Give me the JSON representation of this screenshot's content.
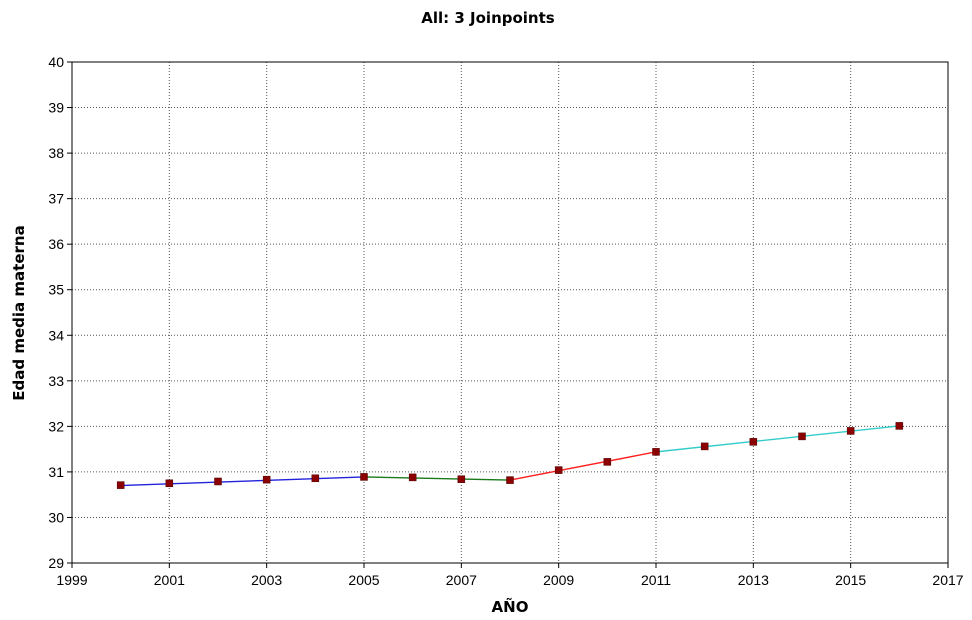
{
  "chart_data": {
    "type": "line",
    "title": "All: 3 Joinpoints",
    "xlabel": "AÑO",
    "ylabel": "Edad media materna",
    "xlim": [
      1999,
      2017
    ],
    "ylim": [
      29,
      40
    ],
    "xticks": [
      "1999",
      "2001",
      "2003",
      "2005",
      "2007",
      "2009",
      "2011",
      "2013",
      "2015",
      "2017"
    ],
    "yticks": [
      "29",
      "30",
      "31",
      "32",
      "33",
      "34",
      "35",
      "36",
      "37",
      "38",
      "39",
      "40"
    ],
    "grid": true,
    "observed": {
      "x": [
        2000,
        2001,
        2002,
        2003,
        2004,
        2005,
        2006,
        2007,
        2008,
        2009,
        2010,
        2011,
        2012,
        2013,
        2014,
        2015,
        2016
      ],
      "y": [
        30.71,
        30.75,
        30.79,
        30.83,
        30.86,
        30.89,
        30.88,
        30.84,
        30.82,
        31.04,
        31.22,
        31.44,
        31.56,
        31.66,
        31.78,
        31.9,
        32.01
      ],
      "marker_color": "#8b0000"
    },
    "segments": [
      {
        "color": "#2222dd",
        "x": [
          2000,
          2005
        ],
        "y": [
          30.7,
          30.89
        ]
      },
      {
        "color": "#1a7a1a",
        "x": [
          2005,
          2008
        ],
        "y": [
          30.89,
          30.82
        ]
      },
      {
        "color": "#ff2020",
        "x": [
          2008,
          2011
        ],
        "y": [
          30.82,
          31.44
        ]
      },
      {
        "color": "#33cccc",
        "x": [
          2011,
          2016
        ],
        "y": [
          31.44,
          32.01
        ]
      }
    ]
  }
}
